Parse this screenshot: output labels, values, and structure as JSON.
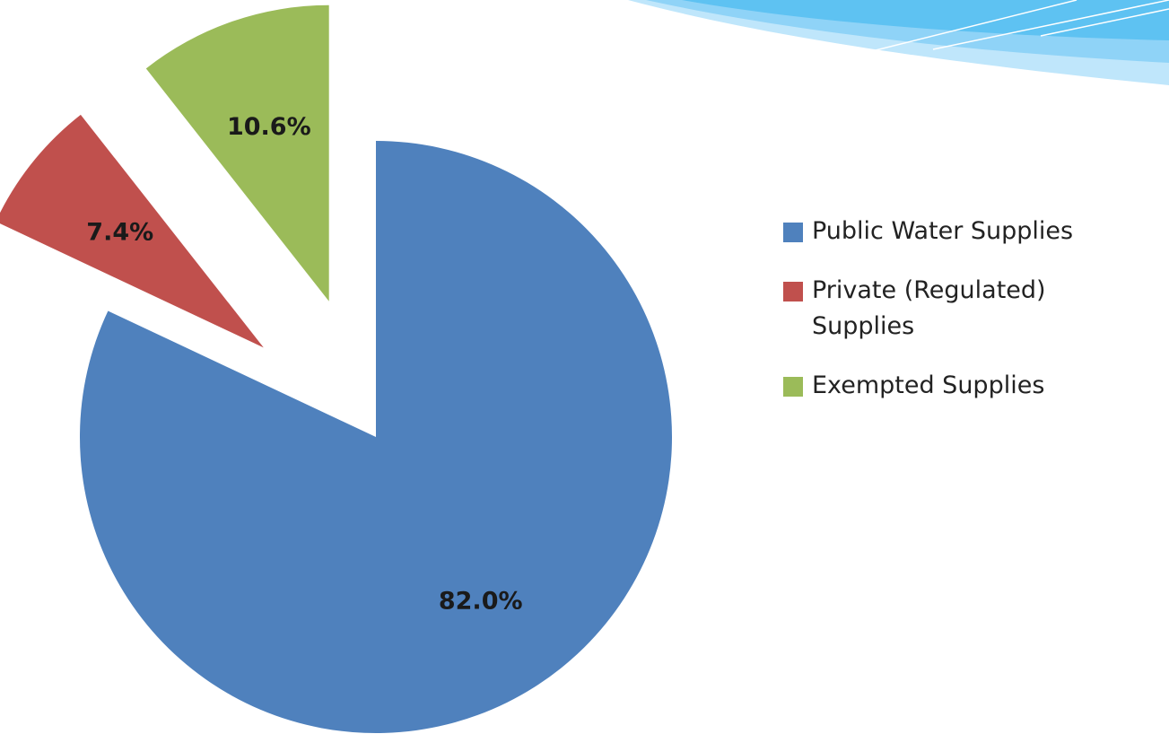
{
  "chart_data": {
    "type": "pie",
    "categories": [
      "Public Water Supplies",
      "Private (Regulated) Supplies",
      "Exempted Supplies"
    ],
    "values": [
      82.0,
      7.4,
      10.6
    ],
    "value_labels": [
      "82.0%",
      "7.4%",
      "10.6%"
    ],
    "colors": [
      "#4f81bd",
      "#c0504d",
      "#9bbb59"
    ],
    "legend": "right"
  }
}
